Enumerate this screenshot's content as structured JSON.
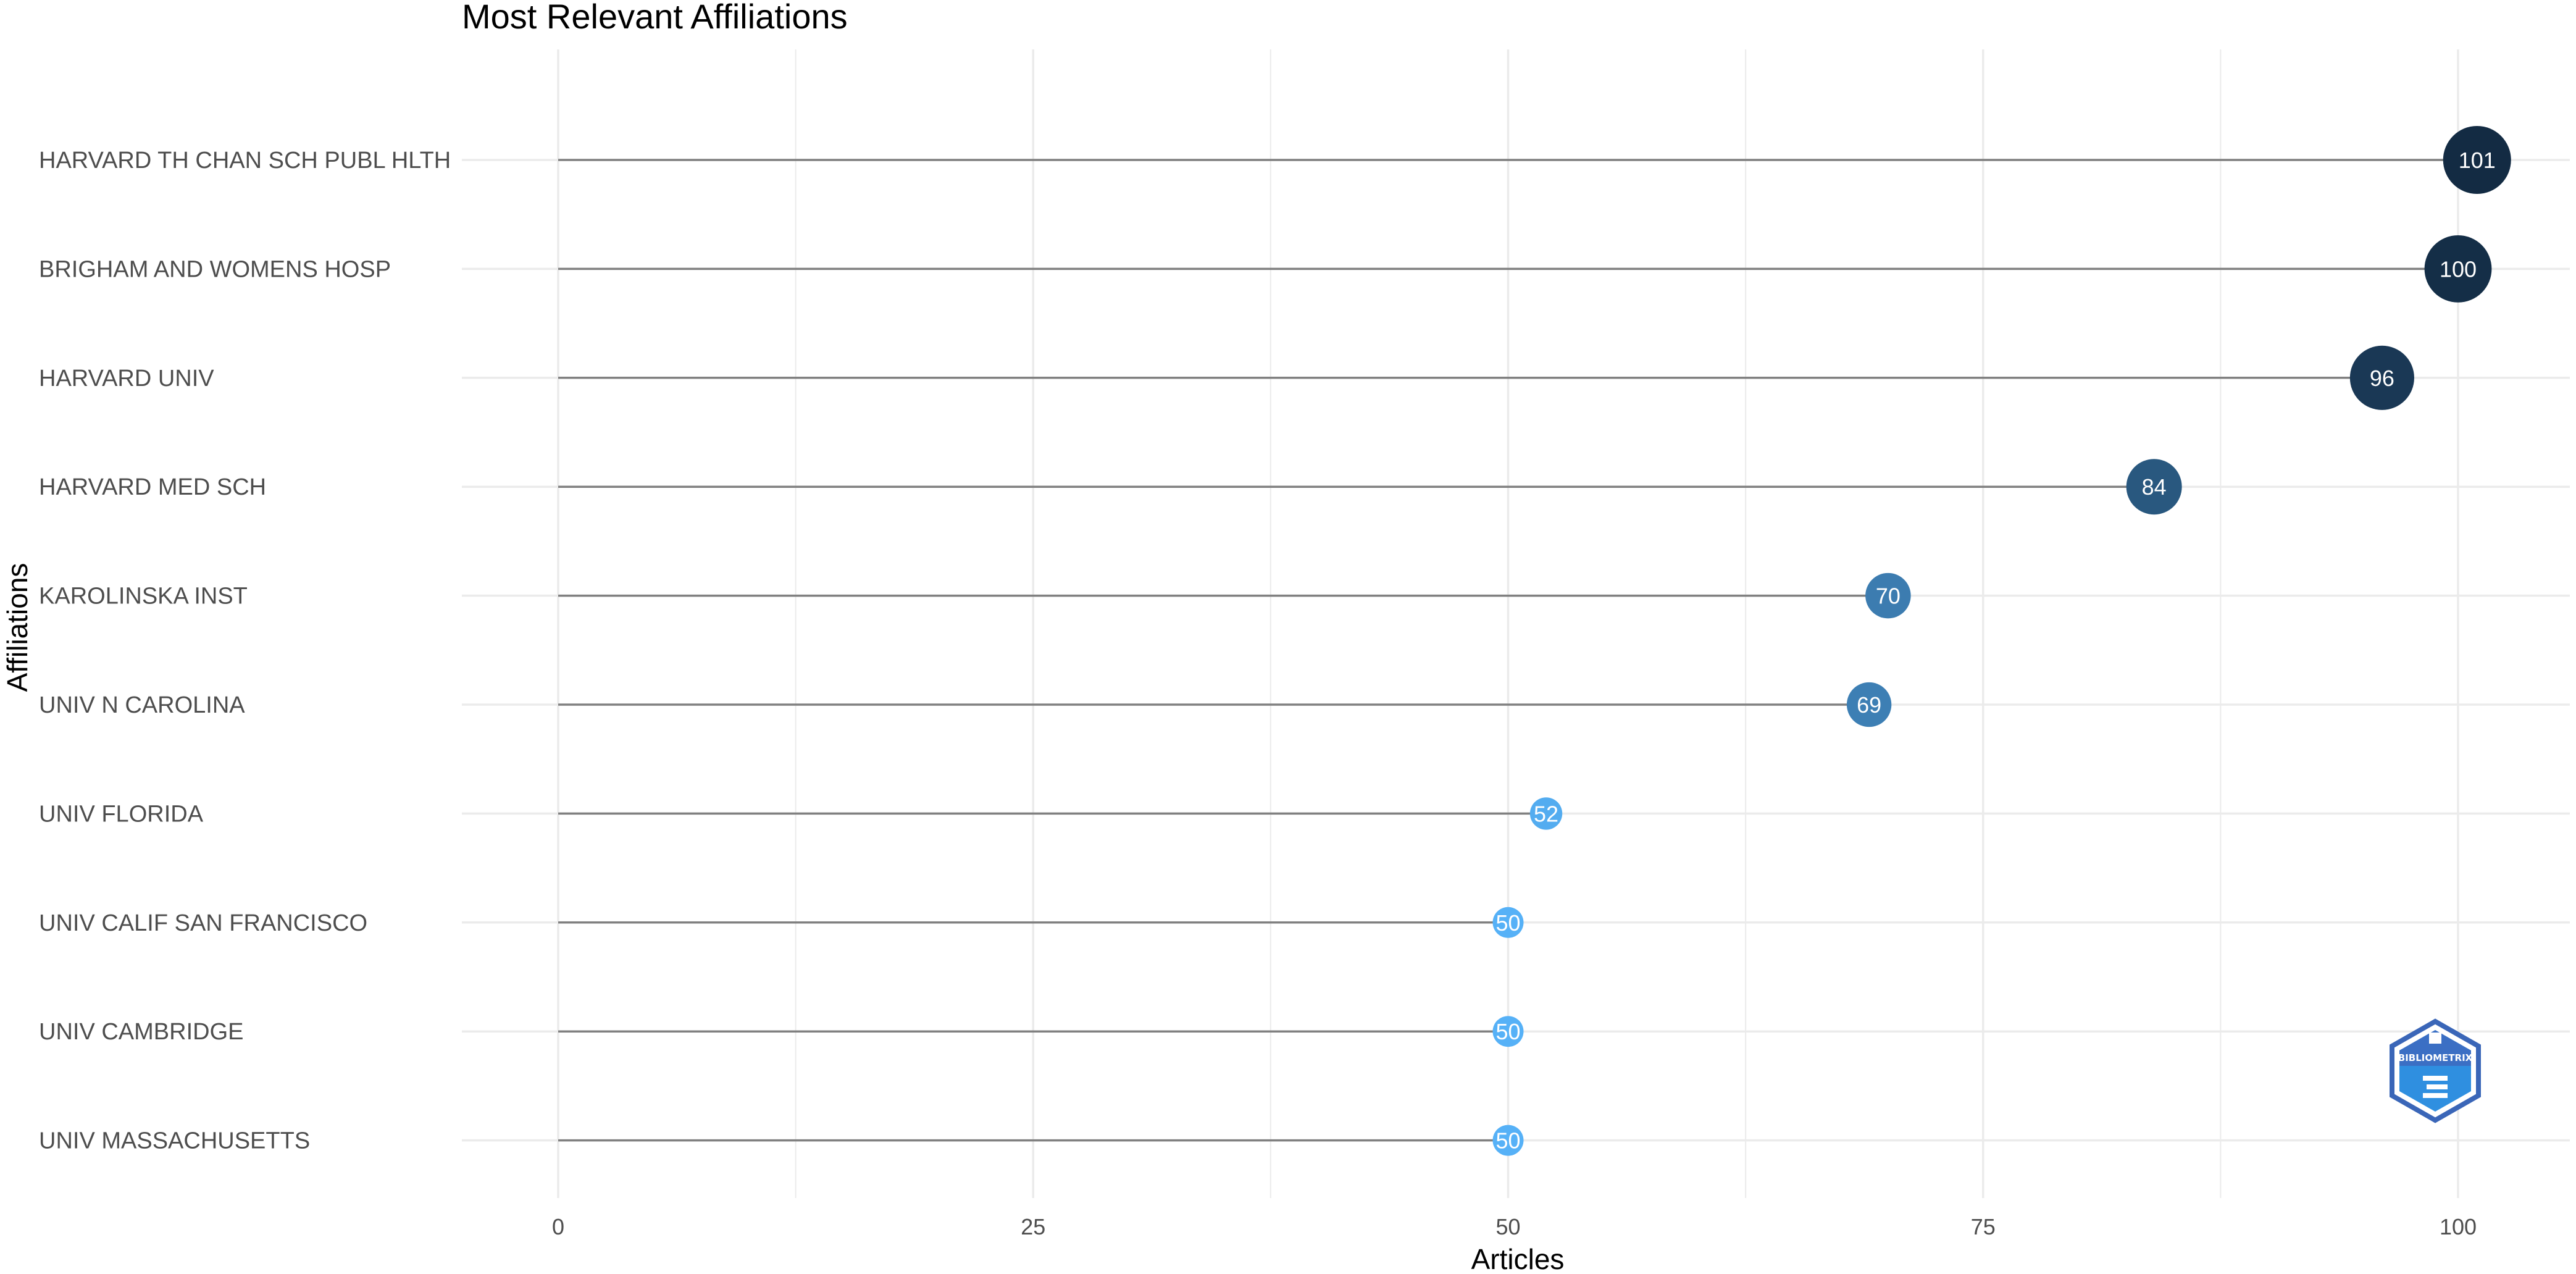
{
  "chart_data": {
    "type": "scatter",
    "title": "Most Relevant Affiliations",
    "xlabel": "Articles",
    "ylabel": "Affiliations",
    "xlim": [
      -5,
      106
    ],
    "x_ticks": [
      0,
      25,
      50,
      75,
      100
    ],
    "grid": true,
    "categories": [
      "HARVARD TH CHAN SCH PUBL HLTH",
      "BRIGHAM AND WOMENS HOSP",
      "HARVARD UNIV",
      "HARVARD MED SCH",
      "KAROLINSKA INST",
      "UNIV N CAROLINA",
      "UNIV FLORIDA",
      "UNIV CALIF SAN FRANCISCO",
      "UNIV CAMBRIDGE",
      "UNIV MASSACHUSETTS"
    ],
    "values": [
      101,
      100,
      96,
      84,
      70,
      69,
      52,
      50,
      50,
      50
    ],
    "colors": {
      "low": "#56b1f7",
      "high": "#132b43",
      "segment": "#808080",
      "grid": "#ebebeb"
    }
  },
  "watermark": {
    "text": "BIBLIOMETRIX",
    "icon": "bibliometrix-logo-icon"
  }
}
